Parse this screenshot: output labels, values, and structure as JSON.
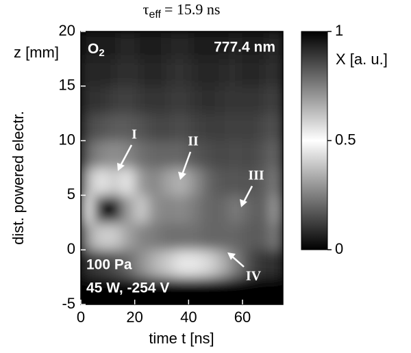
{
  "chart_data": {
    "type": "heatmap",
    "title_parts": [
      "τ",
      "eff",
      "= 15.9 ns"
    ],
    "xlabel": "time t [ns]",
    "ylabel": "dist. powered electr.",
    "ylabel_top": "z [mm]",
    "species_parts": [
      "O",
      "2"
    ],
    "annotations": [
      "777.4 nm",
      "100 Pa",
      "45 W, -254 V",
      "I",
      "II",
      "III",
      "IV"
    ],
    "xlim": [
      0,
      75
    ],
    "ylim": [
      -5,
      20
    ],
    "xticks": [
      0,
      20,
      40,
      60
    ],
    "yticks": [
      -5,
      0,
      5,
      10,
      15,
      20
    ],
    "xbins": [
      0,
      5,
      10,
      15,
      20,
      25,
      30,
      35,
      40,
      45,
      50,
      55,
      60,
      65,
      70,
      75
    ],
    "ybins": [
      -5,
      -2.5,
      0,
      2.5,
      5,
      7.5,
      10,
      12.5,
      15,
      17.5,
      20
    ],
    "z": [
      [
        0,
        0,
        0,
        0,
        0,
        0,
        0,
        0,
        0,
        0,
        0,
        0,
        0,
        0,
        0
      ],
      [
        0.1,
        0.12,
        0.15,
        0.2,
        0.28,
        0.35,
        0.4,
        0.45,
        0.45,
        0.42,
        0.35,
        0.25,
        0.15,
        0.1,
        0.1
      ],
      [
        0.3,
        0.4,
        0.4,
        0.32,
        0.26,
        0.24,
        0.22,
        0.22,
        0.22,
        0.2,
        0.2,
        0.2,
        0.18,
        0.18,
        0.24
      ],
      [
        0.55,
        0.95,
        1.0,
        0.7,
        0.4,
        0.28,
        0.26,
        0.27,
        0.24,
        0.2,
        0.2,
        0.24,
        0.2,
        0.18,
        0.3
      ],
      [
        0.35,
        0.55,
        0.6,
        0.45,
        0.3,
        0.26,
        0.32,
        0.35,
        0.28,
        0.2,
        0.17,
        0.17,
        0.16,
        0.18,
        0.24
      ],
      [
        0.2,
        0.26,
        0.28,
        0.26,
        0.22,
        0.2,
        0.2,
        0.2,
        0.17,
        0.15,
        0.14,
        0.15,
        0.14,
        0.16,
        0.2
      ],
      [
        0.14,
        0.16,
        0.18,
        0.18,
        0.16,
        0.14,
        0.14,
        0.15,
        0.13,
        0.12,
        0.12,
        0.13,
        0.12,
        0.14,
        0.16
      ],
      [
        0.1,
        0.1,
        0.12,
        0.13,
        0.11,
        0.1,
        0.11,
        0.12,
        0.1,
        0.09,
        0.1,
        0.11,
        0.1,
        0.11,
        0.13
      ],
      [
        0.08,
        0.07,
        0.08,
        0.1,
        0.08,
        0.07,
        0.09,
        0.1,
        0.08,
        0.07,
        0.08,
        0.09,
        0.07,
        0.08,
        0.1
      ],
      [
        0.06,
        0.05,
        0.06,
        0.08,
        0.06,
        0.05,
        0.07,
        0.08,
        0.06,
        0.05,
        0.06,
        0.07,
        0.05,
        0.06,
        0.08
      ]
    ],
    "colorbar_label": "X [a. u.]",
    "clim": [
      0,
      1
    ],
    "cticks": [
      0,
      0.5,
      1
    ],
    "colormap": [
      "#000000",
      "#ffffff",
      "#000000"
    ]
  }
}
